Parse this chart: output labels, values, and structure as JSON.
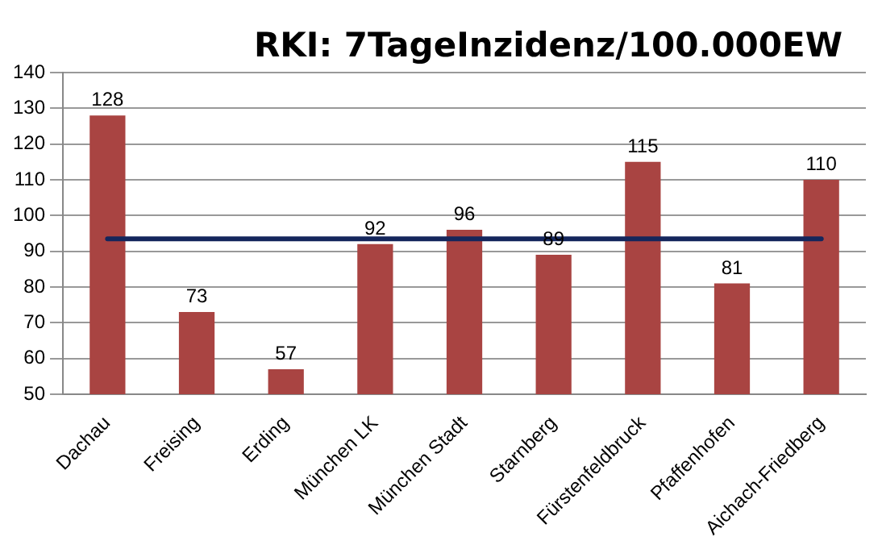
{
  "chart_data": {
    "type": "bar",
    "title": "RKI: 7TageInzidenz/100.000EW",
    "categories": [
      "Dachau",
      "Freising",
      "Erding",
      "München LK",
      "München Stadt",
      "Starnberg",
      "Fürstenfeldbruck",
      "Pfaffenhofen",
      "Aichach-Friedberg"
    ],
    "values": [
      128,
      73,
      57,
      92,
      96,
      89,
      115,
      81,
      110
    ],
    "color": "#a94442",
    "ylim": [
      50,
      140
    ],
    "yticks": [
      50,
      60,
      70,
      80,
      90,
      100,
      110,
      120,
      130,
      140
    ],
    "grid": "y",
    "data_labels": true,
    "legend": false,
    "ref_lines": [
      {
        "axis": "y",
        "value": 93.5,
        "color": "#14265c"
      }
    ]
  }
}
